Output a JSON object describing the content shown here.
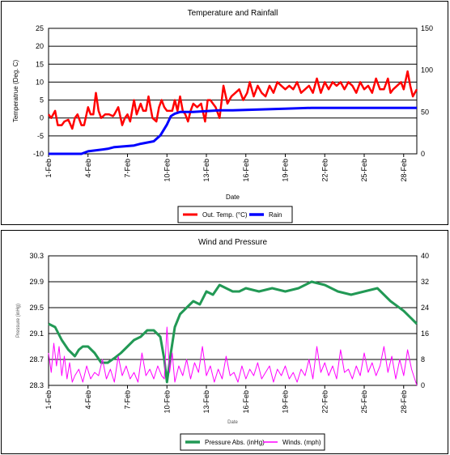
{
  "chart_data": [
    {
      "type": "line",
      "title": "Temperature and Rainfall",
      "xlabel": "Date",
      "ylabel": "Temperatrue (Deg. C)",
      "x_tick_labels": [
        "1-Feb",
        "4-Feb",
        "7-Feb",
        "10-Feb",
        "13-Feb",
        "16-Feb",
        "19-Feb",
        "22-Feb",
        "25-Feb",
        "28-Feb"
      ],
      "xlim": [
        1,
        29
      ],
      "ylim": [
        -10,
        25
      ],
      "y_ticks": [
        25,
        20,
        15,
        10,
        5,
        0,
        -5,
        -10
      ],
      "y2lim": [
        0,
        150
      ],
      "y2_ticks": [
        150,
        100,
        50,
        0
      ],
      "grid": true,
      "legend_position": "bottom-center",
      "series": [
        {
          "name": "Out. Temp. (°C)",
          "axis": "left",
          "color": "#ff0000",
          "x": [
            1,
            1.2,
            1.5,
            1.7,
            2,
            2.2,
            2.5,
            2.8,
            3,
            3.2,
            3.5,
            3.7,
            4,
            4.2,
            4.4,
            4.6,
            4.8,
            5,
            5.3,
            5.6,
            5.9,
            6,
            6.3,
            6.6,
            6.8,
            7,
            7.2,
            7.5,
            7.7,
            8,
            8.2,
            8.4,
            8.6,
            8.9,
            9.2,
            9.4,
            9.6,
            9.8,
            10,
            10.2,
            10.4,
            10.6,
            10.8,
            11,
            11.2,
            11.4,
            11.6,
            11.8,
            12,
            12.3,
            12.6,
            12.9,
            13.1,
            13.3,
            13.5,
            13.7,
            14,
            14.3,
            14.6,
            14.9,
            15.2,
            15.5,
            15.8,
            16.1,
            16.3,
            16.6,
            16.9,
            17.2,
            17.5,
            17.8,
            18.1,
            18.4,
            18.7,
            19,
            19.3,
            19.6,
            19.9,
            20.2,
            20.5,
            20.8,
            21.1,
            21.4,
            21.7,
            22,
            22.3,
            22.6,
            22.9,
            23.2,
            23.5,
            23.8,
            24.1,
            24.4,
            24.7,
            25,
            25.3,
            25.6,
            25.9,
            26.2,
            26.5,
            26.8,
            27,
            27.2,
            27.5,
            27.8,
            28,
            28.3,
            28.5,
            28.7,
            29
          ],
          "y": [
            1,
            0,
            2,
            -2,
            -2,
            -1,
            -0.5,
            -3,
            0,
            1,
            -2,
            -2,
            3,
            1,
            1,
            7,
            2,
            0,
            1,
            1,
            0.5,
            1,
            3,
            -2,
            0,
            1,
            -1,
            5,
            1,
            4,
            2,
            2,
            6,
            0,
            -1,
            3,
            5,
            3,
            2,
            2,
            2,
            5,
            2,
            6,
            2,
            1,
            -1,
            2,
            4,
            3,
            4,
            -1,
            5,
            5,
            4,
            3,
            0,
            9,
            4,
            6,
            7,
            8,
            5,
            7,
            10,
            6,
            9,
            7,
            6,
            9,
            7,
            10,
            9,
            8,
            9,
            8,
            10,
            7,
            8,
            9,
            7,
            11,
            7,
            10,
            8,
            10,
            9,
            10,
            8,
            10,
            9,
            7,
            10,
            8,
            9,
            7,
            11,
            8,
            8,
            11,
            7,
            8,
            9,
            10,
            8,
            13,
            9,
            6,
            8
          ],
          "values_note": "approximate"
        },
        {
          "name": "Rain",
          "axis": "right",
          "color": "#0000ff",
          "x": [
            1,
            3.5,
            4,
            5.5,
            6,
            7.5,
            8,
            9,
            9.5,
            10,
            10.3,
            10.6,
            11,
            12,
            13,
            14,
            15,
            17,
            19,
            21,
            23,
            25,
            27,
            29
          ],
          "y": [
            0,
            0,
            3,
            6,
            8,
            10,
            12,
            15,
            22,
            35,
            45,
            48,
            50,
            50,
            51,
            52,
            52,
            53,
            54,
            55,
            55,
            55,
            55,
            55
          ]
        }
      ]
    },
    {
      "type": "line",
      "title": "Wind and Pressure",
      "xlabel": "Date",
      "ylabel": "Pressure (inHg)",
      "x_tick_labels": [
        "1-Feb",
        "4-Feb",
        "7-Feb",
        "10-Feb",
        "13-Feb",
        "16-Feb",
        "19-Feb",
        "22-Feb",
        "25-Feb",
        "28-Feb"
      ],
      "xlim": [
        1,
        29
      ],
      "ylim": [
        28.3,
        30.3
      ],
      "y_ticks": [
        "30.3",
        "29.9",
        "29.5",
        "29.1",
        "28.7",
        "28.3"
      ],
      "y2lim": [
        0,
        40
      ],
      "y2_ticks": [
        40,
        32,
        24,
        16,
        8,
        0
      ],
      "grid": true,
      "legend_position": "bottom-center",
      "series": [
        {
          "name": "Pressure Abs. (inHg)",
          "axis": "left",
          "color": "#229955",
          "x": [
            1,
            1.5,
            2,
            2.5,
            3,
            3.3,
            3.6,
            4,
            4.5,
            5,
            5.5,
            6,
            6.5,
            7,
            7.5,
            8,
            8.5,
            9,
            9.5,
            9.8,
            10,
            10.3,
            10.6,
            11,
            11.5,
            12,
            12.5,
            13,
            13.5,
            14,
            14.5,
            15,
            15.5,
            16,
            17,
            18,
            19,
            20,
            21,
            22,
            23,
            24,
            25,
            26,
            27,
            28,
            29
          ],
          "y": [
            29.25,
            29.2,
            29.0,
            28.85,
            28.75,
            28.85,
            28.9,
            28.9,
            28.8,
            28.65,
            28.65,
            28.72,
            28.8,
            28.9,
            29.0,
            29.05,
            29.15,
            29.15,
            29.05,
            28.7,
            28.35,
            28.8,
            29.2,
            29.4,
            29.5,
            29.6,
            29.55,
            29.75,
            29.7,
            29.85,
            29.8,
            29.75,
            29.75,
            29.8,
            29.75,
            29.8,
            29.75,
            29.8,
            29.9,
            29.85,
            29.75,
            29.7,
            29.75,
            29.8,
            29.6,
            29.45,
            29.25
          ]
        },
        {
          "name": "Winds. (mph)",
          "axis": "right",
          "color": "#ff00ff",
          "x": [
            1,
            1.2,
            1.4,
            1.6,
            1.8,
            2,
            2.2,
            2.4,
            2.6,
            2.8,
            3,
            3.3,
            3.6,
            3.9,
            4.2,
            4.5,
            4.8,
            5.1,
            5.4,
            5.7,
            6,
            6.3,
            6.6,
            6.9,
            7.2,
            7.5,
            7.8,
            8.1,
            8.4,
            8.7,
            9,
            9.3,
            9.6,
            9.8,
            10,
            10.2,
            10.4,
            10.6,
            10.9,
            11.2,
            11.5,
            11.8,
            12.1,
            12.4,
            12.7,
            13,
            13.3,
            13.6,
            13.9,
            14.2,
            14.5,
            14.8,
            15.1,
            15.4,
            15.7,
            16,
            16.3,
            16.6,
            16.9,
            17.2,
            17.5,
            17.8,
            18.1,
            18.4,
            18.7,
            19,
            19.3,
            19.6,
            19.9,
            20.2,
            20.5,
            20.8,
            21.1,
            21.4,
            21.7,
            22,
            22.3,
            22.6,
            22.9,
            23.2,
            23.5,
            23.8,
            24.1,
            24.4,
            24.7,
            25,
            25.3,
            25.6,
            25.9,
            26.2,
            26.5,
            26.8,
            27.1,
            27.4,
            27.7,
            28,
            28.3,
            28.6,
            29
          ],
          "y": [
            10,
            4,
            13,
            6,
            12,
            3,
            9,
            2,
            7,
            1,
            3,
            5,
            1,
            6,
            2,
            4,
            3,
            8,
            2,
            5,
            1,
            9,
            3,
            6,
            2,
            4,
            1,
            10,
            3,
            5,
            2,
            6,
            3,
            2,
            18,
            4,
            10,
            1,
            6,
            3,
            8,
            2,
            7,
            4,
            12,
            3,
            6,
            1,
            5,
            2,
            9,
            3,
            4,
            1,
            6,
            2,
            5,
            3,
            7,
            2,
            4,
            6,
            1,
            5,
            3,
            6,
            2,
            4,
            1,
            5,
            3,
            8,
            2,
            12,
            4,
            7,
            3,
            6,
            2,
            11,
            4,
            5,
            2,
            6,
            3,
            10,
            4,
            7,
            3,
            6,
            12,
            4,
            9,
            2,
            8,
            3,
            11,
            5,
            0
          ]
        }
      ]
    }
  ]
}
